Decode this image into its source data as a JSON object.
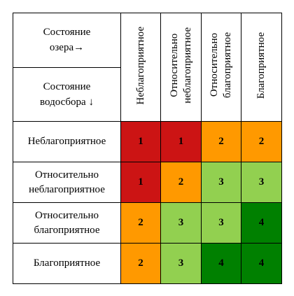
{
  "corner": {
    "lake_state_label": "Состояние\nозера→",
    "catchment_state_label": "Состояние\nводосбора ↓"
  },
  "columns": [
    {
      "label": "Неблагоприятное"
    },
    {
      "label": "Относительно\nнеблагоприятное"
    },
    {
      "label": "Относительно\nблагоприятное"
    },
    {
      "label": "Благоприятное"
    }
  ],
  "rows": [
    {
      "label": "Неблагоприятное",
      "cells": [
        {
          "value": "1",
          "color": "#CC1414"
        },
        {
          "value": "1",
          "color": "#CC1414"
        },
        {
          "value": "2",
          "color": "#FF9900"
        },
        {
          "value": "2",
          "color": "#FF9900"
        }
      ]
    },
    {
      "label": "Относительно\nнеблагоприятное",
      "cells": [
        {
          "value": "1",
          "color": "#CC1414"
        },
        {
          "value": "2",
          "color": "#FF9900"
        },
        {
          "value": "3",
          "color": "#92D050"
        },
        {
          "value": "3",
          "color": "#92D050"
        }
      ]
    },
    {
      "label": "Относительно\nблагоприятное",
      "cells": [
        {
          "value": "2",
          "color": "#FF9900"
        },
        {
          "value": "3",
          "color": "#92D050"
        },
        {
          "value": "3",
          "color": "#92D050"
        },
        {
          "value": "4",
          "color": "#008000"
        }
      ]
    },
    {
      "label": "Благоприятное",
      "cells": [
        {
          "value": "2",
          "color": "#FF9900"
        },
        {
          "value": "3",
          "color": "#92D050"
        },
        {
          "value": "4",
          "color": "#008000"
        },
        {
          "value": "4",
          "color": "#008000"
        }
      ]
    }
  ]
}
